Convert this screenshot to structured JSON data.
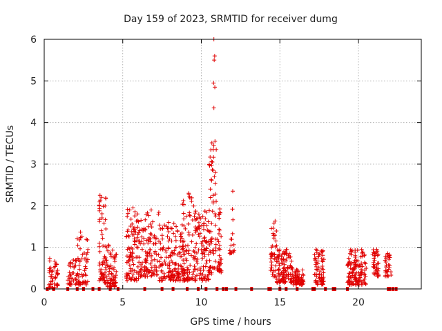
{
  "chart_data": {
    "type": "scatter",
    "title": "Day 159 of 2023, SRMTID for receiver dumg",
    "xlabel": "GPS time / hours",
    "ylabel": "SRMTID / TECUs",
    "xlim": [
      0,
      24
    ],
    "ylim": [
      0,
      6
    ],
    "xticks": [
      0,
      5,
      10,
      15,
      20
    ],
    "yticks": [
      0,
      1,
      2,
      3,
      4,
      5,
      6
    ],
    "grid": true,
    "marker": "+",
    "color": "#e00000",
    "series": [
      {
        "name": "SRMTID",
        "clusters": [
          {
            "x_start": 0.3,
            "x_end": 0.9,
            "count": 45,
            "y_min": 0.02,
            "y_max": 0.75
          },
          {
            "x_start": 1.5,
            "x_end": 2.1,
            "count": 40,
            "y_min": 0.1,
            "y_max": 0.7
          },
          {
            "x_start": 2.1,
            "x_end": 2.8,
            "count": 55,
            "y_min": 0.1,
            "y_max": 1.4
          },
          {
            "x_start": 3.5,
            "x_end": 4.0,
            "count": 55,
            "y_min": 0.2,
            "y_max": 2.25
          },
          {
            "x_start": 3.8,
            "x_end": 4.6,
            "count": 75,
            "y_min": 0.05,
            "y_max": 1.1
          },
          {
            "x_start": 5.2,
            "x_end": 6.0,
            "count": 90,
            "y_min": 0.2,
            "y_max": 2.0
          },
          {
            "x_start": 6.0,
            "x_end": 7.3,
            "count": 120,
            "y_min": 0.3,
            "y_max": 1.9
          },
          {
            "x_start": 7.3,
            "x_end": 9.0,
            "count": 160,
            "y_min": 0.2,
            "y_max": 1.6
          },
          {
            "x_start": 8.8,
            "x_end": 9.6,
            "count": 70,
            "y_min": 0.2,
            "y_max": 2.35
          },
          {
            "x_start": 9.5,
            "x_end": 10.7,
            "count": 120,
            "y_min": 0.2,
            "y_max": 1.9
          },
          {
            "x_start": 10.5,
            "x_end": 10.9,
            "count": 40,
            "y_min": 0.5,
            "y_max": 3.6
          },
          {
            "x_start": 10.9,
            "x_end": 11.3,
            "count": 40,
            "y_min": 0.4,
            "y_max": 2.2
          },
          {
            "x_start": 11.8,
            "x_end": 12.1,
            "count": 15,
            "y_min": 0.85,
            "y_max": 2.35
          },
          {
            "x_start": 14.4,
            "x_end": 14.8,
            "count": 45,
            "y_min": 0.3,
            "y_max": 1.65
          },
          {
            "x_start": 14.8,
            "x_end": 15.8,
            "count": 110,
            "y_min": 0.15,
            "y_max": 0.95
          },
          {
            "x_start": 15.8,
            "x_end": 16.5,
            "count": 60,
            "y_min": 0.1,
            "y_max": 0.5
          },
          {
            "x_start": 17.2,
            "x_end": 17.8,
            "count": 65,
            "y_min": 0.1,
            "y_max": 0.98
          },
          {
            "x_start": 19.3,
            "x_end": 20.5,
            "count": 130,
            "y_min": 0.1,
            "y_max": 0.95
          },
          {
            "x_start": 20.9,
            "x_end": 21.3,
            "count": 40,
            "y_min": 0.3,
            "y_max": 0.95
          },
          {
            "x_start": 21.7,
            "x_end": 22.1,
            "count": 30,
            "y_min": 0.3,
            "y_max": 0.9
          }
        ],
        "spikes": [
          {
            "x": 10.8,
            "y": 6.0
          },
          {
            "x": 10.85,
            "y": 5.6
          },
          {
            "x": 10.82,
            "y": 5.5
          },
          {
            "x": 10.78,
            "y": 4.95
          },
          {
            "x": 10.86,
            "y": 4.85
          },
          {
            "x": 10.8,
            "y": 4.35
          },
          {
            "x": 10.87,
            "y": 3.55
          },
          {
            "x": 10.76,
            "y": 3.35
          },
          {
            "x": 10.95,
            "y": 3.35
          },
          {
            "x": 10.7,
            "y": 3.05
          },
          {
            "x": 10.74,
            "y": 2.85
          },
          {
            "x": 10.9,
            "y": 2.8
          },
          {
            "x": 3.55,
            "y": 2.25
          },
          {
            "x": 3.65,
            "y": 2.2
          },
          {
            "x": 9.2,
            "y": 2.3
          },
          {
            "x": 12.0,
            "y": 2.35
          },
          {
            "x": 5.65,
            "y": 1.95
          }
        ],
        "zero_markers": [
          0.2,
          0.6,
          1.5,
          2.1,
          2.5,
          3.1,
          3.5,
          4.2,
          4.7,
          6.4,
          7.5,
          8.2,
          9.1,
          9.8,
          10.3,
          11.0,
          11.4,
          11.6,
          12.2,
          13.2,
          14.3,
          14.4,
          15.0,
          15.4,
          16.1,
          17.1,
          17.2,
          17.9,
          18.4,
          18.5,
          19.3,
          21.9,
          22.0,
          22.2,
          22.4
        ]
      }
    ]
  }
}
